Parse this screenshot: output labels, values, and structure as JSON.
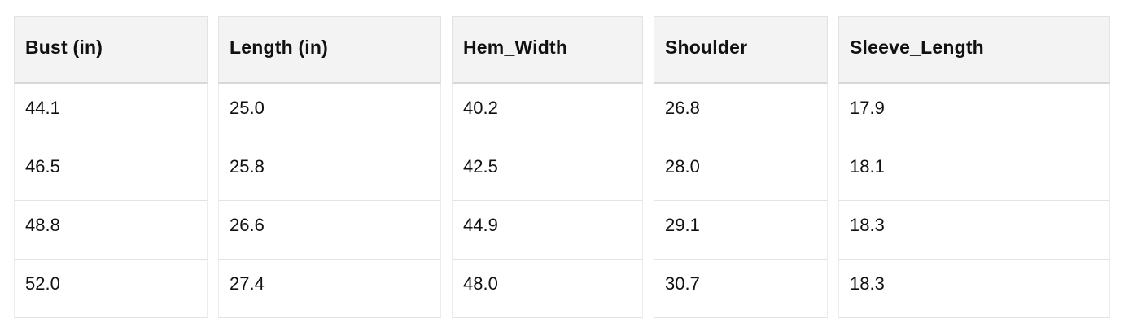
{
  "chart_data": {
    "type": "table",
    "columns": [
      "Bust (in)",
      "Length (in)",
      "Hem_Width",
      "Shoulder",
      "Sleeve_Length"
    ],
    "rows": [
      [
        "44.1",
        "25.0",
        "40.2",
        "26.8",
        "17.9"
      ],
      [
        "46.5",
        "25.8",
        "42.5",
        "28.0",
        "18.1"
      ],
      [
        "48.8",
        "26.6",
        "44.9",
        "29.1",
        "18.3"
      ],
      [
        "52.0",
        "27.4",
        "48.0",
        "30.7",
        "18.3"
      ]
    ],
    "layout": {
      "grid": "light cell borders, header shaded, 13px horizontal gaps between columns"
    }
  },
  "colors": {
    "header_bg": "#f3f3f3",
    "header_border_bottom": "#d8d8d8",
    "cell_border": "#e3e3e3",
    "text": "#111111",
    "page_bg": "#ffffff"
  }
}
